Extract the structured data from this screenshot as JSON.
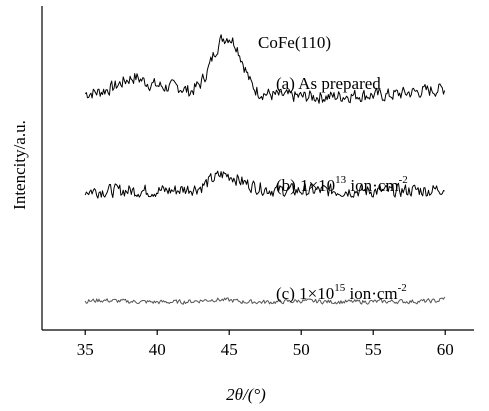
{
  "chart_data": {
    "type": "line",
    "xlabel": "2θ/(°)",
    "ylabel": "Intencity/a.u.",
    "xlim": [
      32,
      62
    ],
    "x_ticks": [
      35,
      40,
      45,
      50,
      55,
      60
    ],
    "y_ticks_shown": false,
    "grid": false,
    "annotations": {
      "peak": "CoFe(110)",
      "a": "(a) As prepared",
      "b": "(b) 1×10",
      "b_exp": "13",
      "b_unit": " ion·cm",
      "b_unit_exp": "-2",
      "c": "(c) 1×10",
      "c_exp": "15",
      "c_unit": " ion·cm",
      "c_unit_exp": "-2"
    },
    "series": [
      {
        "label_key": "a",
        "color": "#000000",
        "baseline": 0.72,
        "noise": 0.012,
        "points": [
          [
            35,
            0.73
          ],
          [
            36,
            0.735
          ],
          [
            37,
            0.75
          ],
          [
            38,
            0.775
          ],
          [
            38.5,
            0.78
          ],
          [
            39.5,
            0.76
          ],
          [
            40.5,
            0.75
          ],
          [
            41.5,
            0.75
          ],
          [
            42.3,
            0.735
          ],
          [
            43,
            0.76
          ],
          [
            43.5,
            0.8
          ],
          [
            44,
            0.86
          ],
          [
            44.5,
            0.9
          ],
          [
            45,
            0.905
          ],
          [
            45.5,
            0.88
          ],
          [
            46,
            0.82
          ],
          [
            46.5,
            0.76
          ],
          [
            47,
            0.735
          ],
          [
            48,
            0.725
          ],
          [
            50,
            0.72
          ],
          [
            52,
            0.72
          ],
          [
            54,
            0.725
          ],
          [
            56,
            0.725
          ],
          [
            58,
            0.735
          ],
          [
            60,
            0.745
          ]
        ]
      },
      {
        "label_key": "b",
        "color": "#000000",
        "baseline": 0.43,
        "noise": 0.012,
        "points": [
          [
            35,
            0.43
          ],
          [
            37,
            0.43
          ],
          [
            39,
            0.43
          ],
          [
            41,
            0.43
          ],
          [
            43,
            0.44
          ],
          [
            43.8,
            0.465
          ],
          [
            44.5,
            0.48
          ],
          [
            45.2,
            0.475
          ],
          [
            46,
            0.455
          ],
          [
            47,
            0.44
          ],
          [
            48,
            0.432
          ],
          [
            50,
            0.43
          ],
          [
            52,
            0.43
          ],
          [
            54,
            0.43
          ],
          [
            56,
            0.428
          ],
          [
            58,
            0.432
          ],
          [
            59,
            0.43
          ],
          [
            60,
            0.44
          ]
        ]
      },
      {
        "label_key": "c",
        "color": "#555555",
        "baseline": 0.085,
        "noise": 0.004,
        "points": [
          [
            35,
            0.088
          ],
          [
            36,
            0.092
          ],
          [
            38,
            0.088
          ],
          [
            40,
            0.086
          ],
          [
            42,
            0.087
          ],
          [
            44,
            0.094
          ],
          [
            45,
            0.092
          ],
          [
            46,
            0.087
          ],
          [
            48,
            0.086
          ],
          [
            50,
            0.09
          ],
          [
            52,
            0.087
          ],
          [
            54,
            0.087
          ],
          [
            56,
            0.088
          ],
          [
            58,
            0.088
          ],
          [
            59.5,
            0.09
          ],
          [
            60,
            0.1
          ]
        ]
      }
    ]
  }
}
